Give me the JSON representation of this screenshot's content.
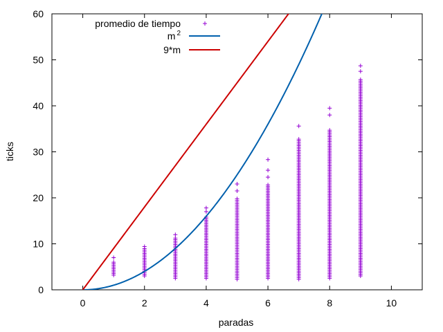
{
  "chart_data": {
    "type": "scatter",
    "xlabel": "paradas",
    "ylabel": "ticks",
    "xlim": [
      -1,
      11
    ],
    "ylim": [
      0,
      60
    ],
    "xticks": [
      "0",
      "2",
      "4",
      "6",
      "8",
      "10"
    ],
    "yticks": [
      "0",
      "10",
      "20",
      "30",
      "40",
      "50",
      "60"
    ],
    "grid": false,
    "legend_position": "top-left",
    "series": [
      {
        "name": "promedio de tiempo",
        "kind": "points",
        "marker": "plus",
        "color": "#9400d3",
        "points": [
          {
            "x": 1,
            "min": 3.2,
            "max": 6.0,
            "outliers": [
              7.0
            ]
          },
          {
            "x": 2,
            "min": 3.0,
            "max": 9.0,
            "outliers": [
              9.4
            ]
          },
          {
            "x": 3,
            "min": 2.5,
            "max": 11.5,
            "outliers": [
              12.0
            ]
          },
          {
            "x": 4,
            "min": 2.5,
            "max": 16.0,
            "outliers": [
              17.0,
              17.8
            ]
          },
          {
            "x": 5,
            "min": 2.3,
            "max": 20.0,
            "outliers": [
              21.5,
              23.0
            ]
          },
          {
            "x": 6,
            "min": 2.5,
            "max": 23.0,
            "outliers": [
              24.5,
              26.0,
              28.3
            ]
          },
          {
            "x": 7,
            "min": 2.3,
            "max": 33.0,
            "outliers": [
              35.6
            ]
          },
          {
            "x": 8,
            "min": 2.5,
            "max": 35.0,
            "outliers": [
              38.0,
              39.5
            ]
          },
          {
            "x": 9,
            "min": 3.0,
            "max": 46.0,
            "outliers": [
              47.5,
              48.7
            ]
          }
        ]
      },
      {
        "name": "m²",
        "label_base": "m",
        "label_sup": "2",
        "kind": "function",
        "expr": "m^2",
        "color": "#0060ad"
      },
      {
        "name": "9*m",
        "kind": "function",
        "expr": "9*m",
        "color": "#cc0000"
      }
    ]
  }
}
